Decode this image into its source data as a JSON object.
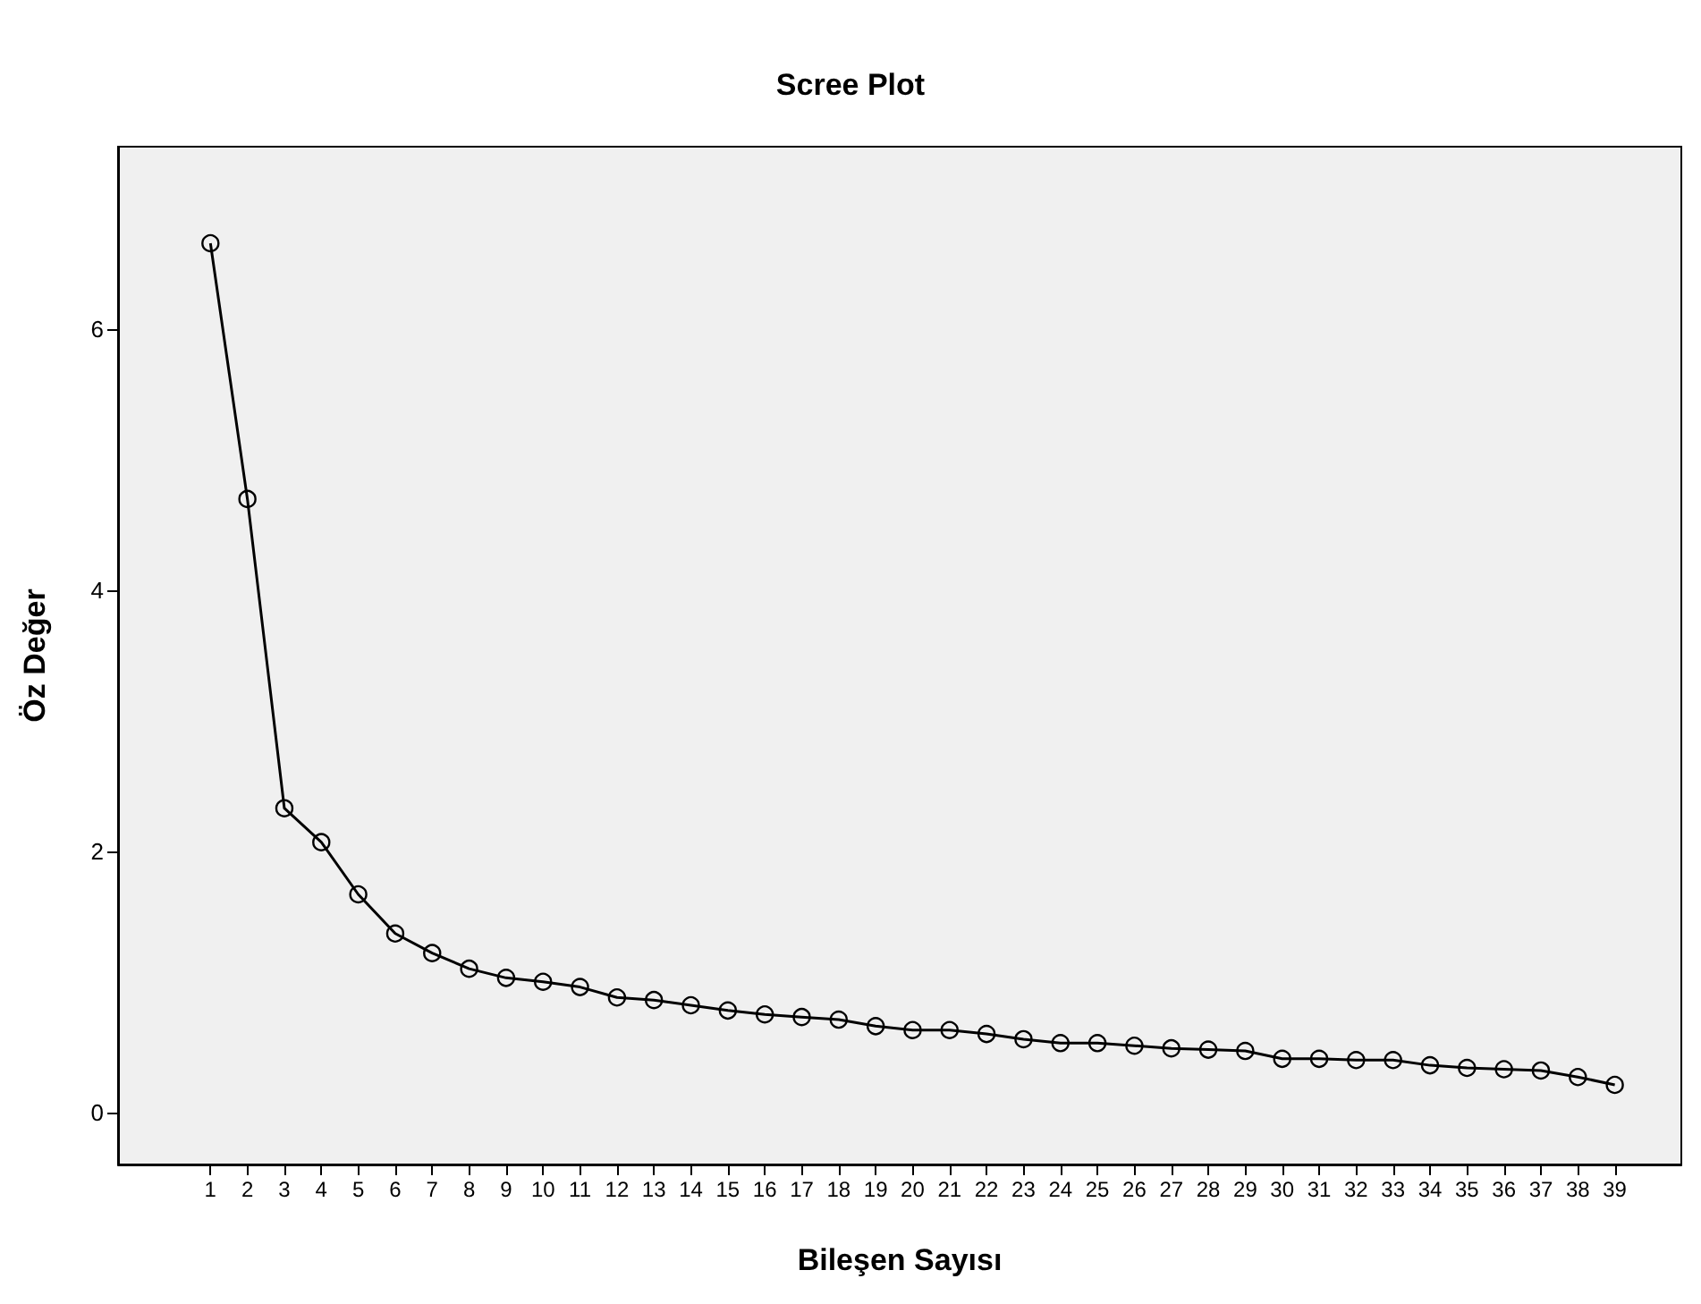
{
  "chart_data": {
    "type": "line",
    "title": "Scree Plot",
    "xlabel": "Bileşen Sayısı",
    "ylabel": "Öz Değer",
    "x": [
      1,
      2,
      3,
      4,
      5,
      6,
      7,
      8,
      9,
      10,
      11,
      12,
      13,
      14,
      15,
      16,
      17,
      18,
      19,
      20,
      21,
      22,
      23,
      24,
      25,
      26,
      27,
      28,
      29,
      30,
      31,
      32,
      33,
      34,
      35,
      36,
      37,
      38,
      39
    ],
    "series": [
      {
        "color": "#000000",
        "values": [
          6.66,
          4.7,
          2.33,
          2.07,
          1.67,
          1.37,
          1.22,
          1.1,
          1.03,
          1.0,
          0.96,
          0.88,
          0.86,
          0.82,
          0.78,
          0.75,
          0.73,
          0.71,
          0.66,
          0.63,
          0.63,
          0.6,
          0.56,
          0.53,
          0.53,
          0.51,
          0.49,
          0.48,
          0.47,
          0.41,
          0.41,
          0.4,
          0.4,
          0.36,
          0.34,
          0.33,
          0.32,
          0.27,
          0.21
        ]
      }
    ],
    "xlim": [
      -1.5,
      40.8
    ],
    "xticks": [
      1,
      2,
      3,
      4,
      5,
      6,
      7,
      8,
      9,
      10,
      11,
      12,
      13,
      14,
      15,
      16,
      17,
      18,
      19,
      20,
      21,
      22,
      23,
      24,
      25,
      26,
      27,
      28,
      29,
      30,
      31,
      32,
      33,
      34,
      35,
      36,
      37,
      38,
      39
    ],
    "ylim": [
      -0.4,
      7.4
    ],
    "yticks": [
      0,
      2,
      4,
      6
    ],
    "grid": false,
    "marker": "circle",
    "line_style": "solid"
  }
}
